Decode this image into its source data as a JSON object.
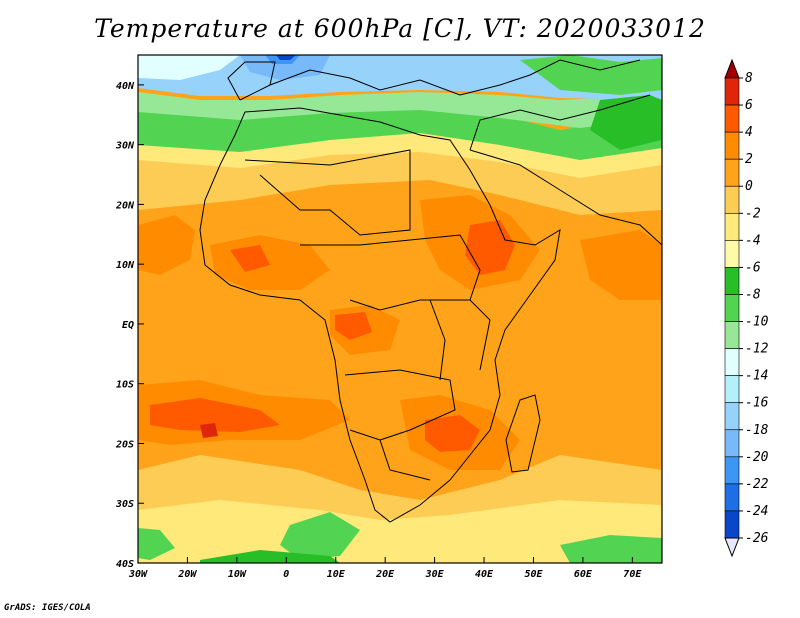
{
  "title": "Temperature at 600hPa [C], VT: 2020033012",
  "credit": "GrADS: IGES/COLA",
  "map": {
    "variable": "Temperature",
    "level": "600hPa",
    "units": "C",
    "valid_time": "2020033012",
    "projection": "latlon",
    "extent": {
      "lon_min": -30,
      "lon_max": 76,
      "lat_min": -40,
      "lat_max": 45
    },
    "lon_ticks": [
      {
        "value": -30,
        "label": "30W"
      },
      {
        "value": -20,
        "label": "20W"
      },
      {
        "value": -10,
        "label": "10W"
      },
      {
        "value": 0,
        "label": "0"
      },
      {
        "value": 10,
        "label": "10E"
      },
      {
        "value": 20,
        "label": "20E"
      },
      {
        "value": 30,
        "label": "30E"
      },
      {
        "value": 40,
        "label": "40E"
      },
      {
        "value": 50,
        "label": "50E"
      },
      {
        "value": 60,
        "label": "60E"
      },
      {
        "value": 70,
        "label": "70E"
      }
    ],
    "lat_ticks": [
      {
        "value": 40,
        "label": "40N"
      },
      {
        "value": 30,
        "label": "30N"
      },
      {
        "value": 20,
        "label": "20N"
      },
      {
        "value": 10,
        "label": "10N"
      },
      {
        "value": 0,
        "label": "EQ"
      },
      {
        "value": -10,
        "label": "10S"
      },
      {
        "value": -20,
        "label": "20S"
      },
      {
        "value": -30,
        "label": "30S"
      },
      {
        "value": -40,
        "label": "40S"
      }
    ]
  },
  "colorbar": {
    "levels": [
      8,
      6,
      4,
      2,
      0,
      -2,
      -4,
      -6,
      -8,
      -10,
      -12,
      -14,
      -16,
      -18,
      -20,
      -22,
      -24,
      -26
    ],
    "colors": [
      "#a00000",
      "#e0260a",
      "#ff5a00",
      "#ff8c00",
      "#ffa41a",
      "#fdcc55",
      "#ffe97a",
      "#fffaa8",
      "#28be28",
      "#52d452",
      "#96e896",
      "#e1ffff",
      "#b4f0fa",
      "#96d2fa",
      "#78b9fa",
      "#3c96f5",
      "#1e6ee6",
      "#0a46c8",
      "#000a78",
      "#e6e6ff"
    ]
  },
  "temperature_regions": [
    {
      "name": "warm background",
      "color": "#ffa41a"
    },
    {
      "name": "north africa band",
      "color": "#fdcc55"
    },
    {
      "name": "sahara band",
      "color": "#ffe97a"
    },
    {
      "name": "mediterranean green",
      "color": "#52d452"
    },
    {
      "name": "mediterranean blue",
      "color": "#96d2fa"
    },
    {
      "name": "hot spots",
      "color": "#ff8c00"
    },
    {
      "name": "hottest spots",
      "color": "#ff5a00"
    }
  ]
}
